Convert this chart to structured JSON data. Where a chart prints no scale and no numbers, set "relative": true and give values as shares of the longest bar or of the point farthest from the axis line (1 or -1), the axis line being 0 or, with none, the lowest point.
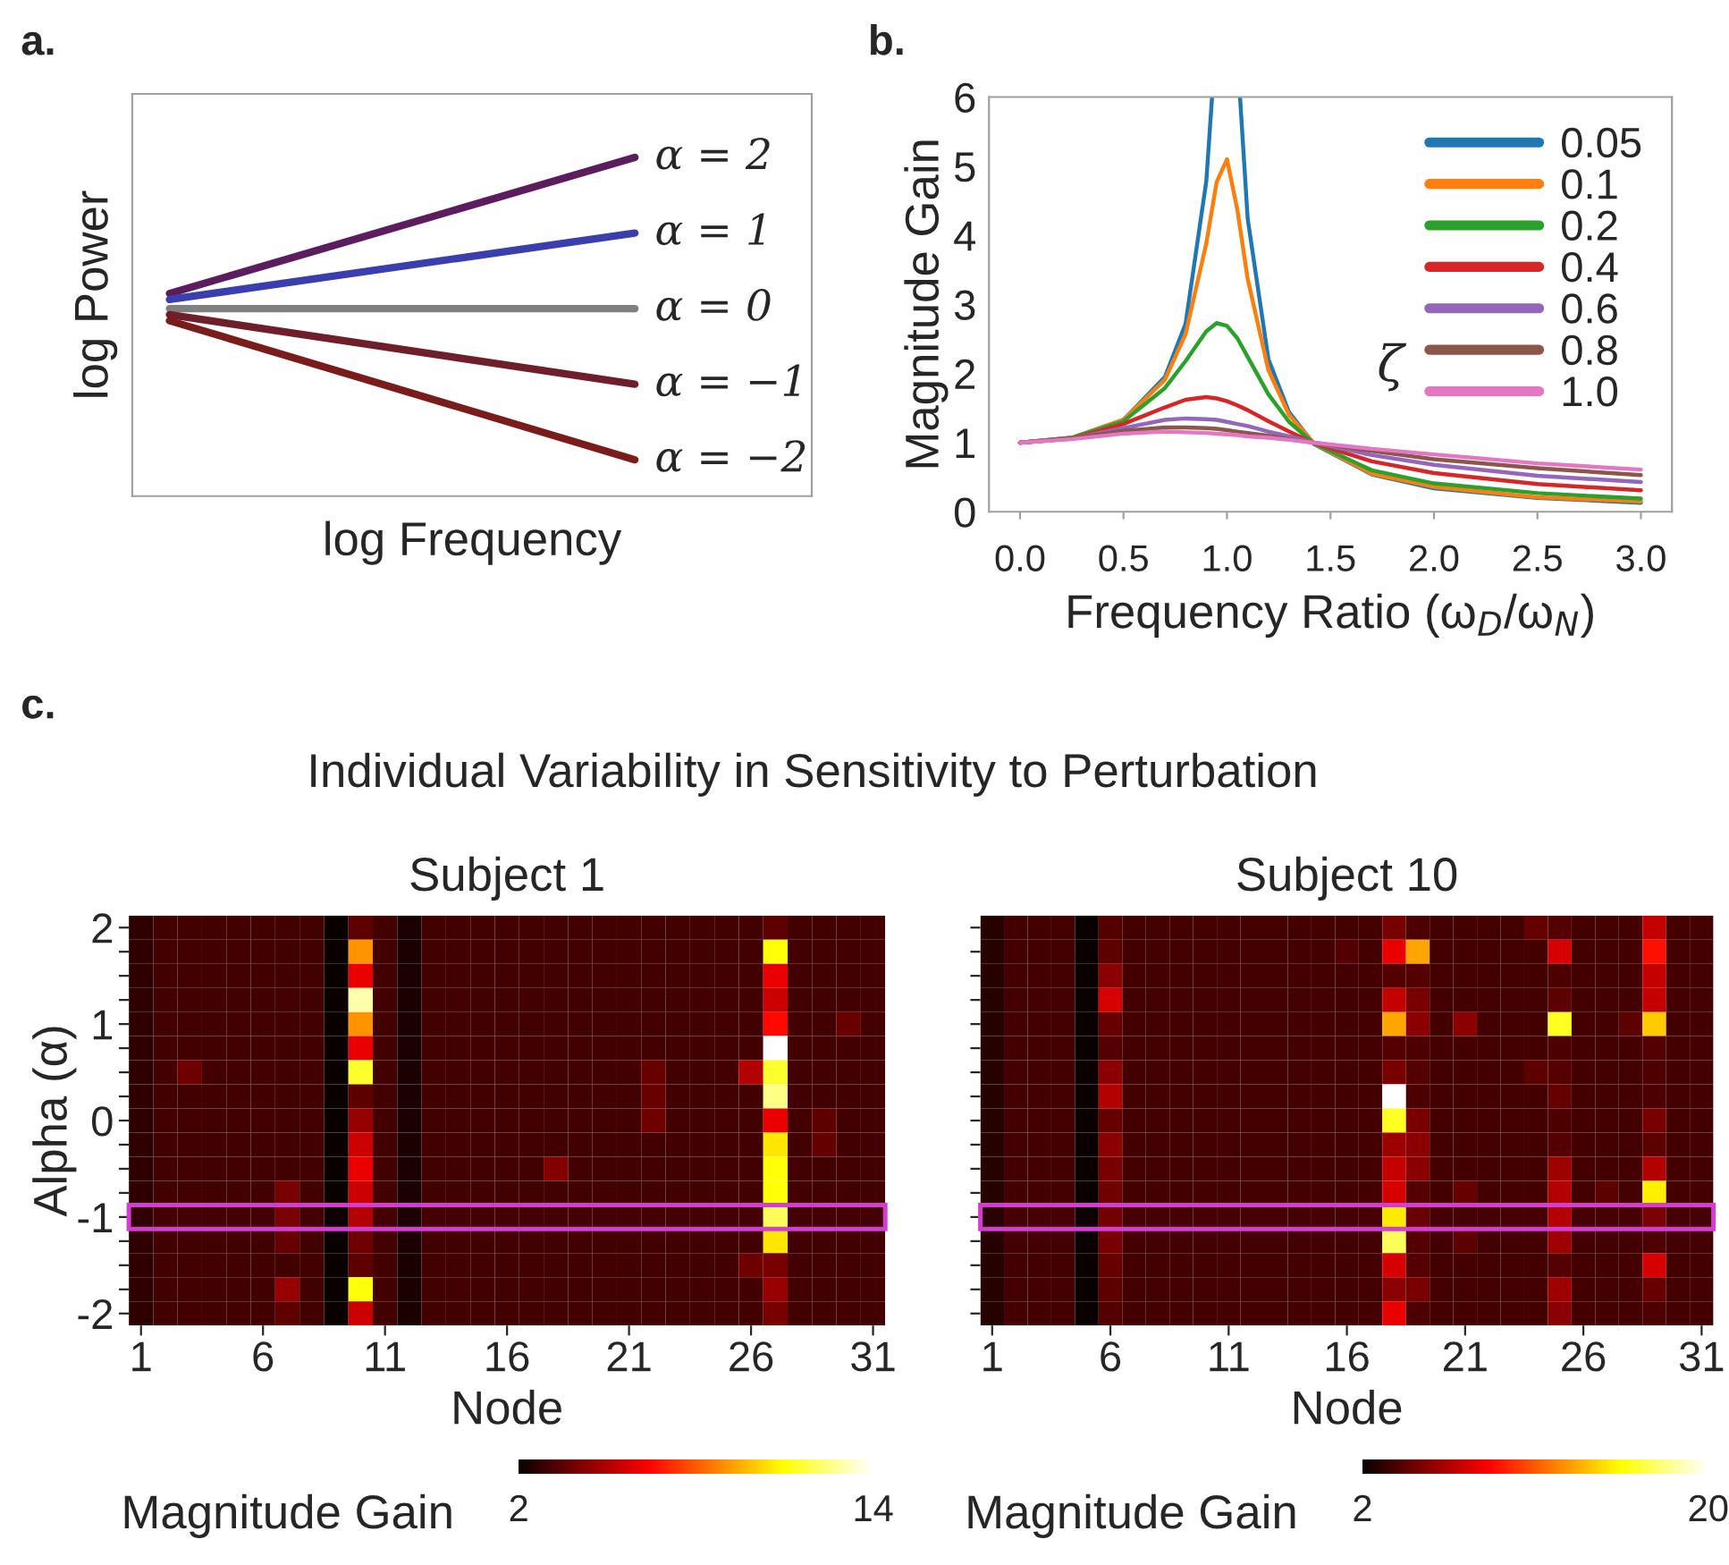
{
  "chart_data": [
    {
      "type": "line",
      "relative": true,
      "categories": [
        null,
        null
      ],
      "xlabel": "log Frequency",
      "ylabel": "log Power",
      "tick_labels": false,
      "annotations": [
        "a."
      ],
      "series": [
        {
          "name": "α = 2",
          "color": "#5b1d5e",
          "values": [
            0.55,
            1
          ]
        },
        {
          "name": "α = 1",
          "color": "#3b3fae",
          "values": [
            0.53,
            0.75
          ]
        },
        {
          "name": "α = 0",
          "color": "#808080",
          "values": [
            0.5,
            0.5
          ]
        },
        {
          "name": "α = −1",
          "color": "#6e1f2a",
          "values": [
            0.48,
            0.25
          ]
        },
        {
          "name": "α = −2",
          "color": "#7a1c1c",
          "values": [
            0.46,
            0
          ]
        }
      ]
    },
    {
      "type": "line",
      "xlabel": "Frequency Ratio (ω$_{D}$/ω$_{N}$)",
      "ylabel": "Magnitude Gain",
      "legend": "top right",
      "legend_title": "ζ",
      "annotations": [
        "b."
      ],
      "x": [
        0,
        0.25,
        0.5,
        0.7,
        0.8,
        0.9,
        0.95,
        1.0,
        1.05,
        1.1,
        1.2,
        1.3,
        1.42,
        1.7,
        2.0,
        2.5,
        3.0
      ],
      "xlim": [
        -0.15,
        3.15
      ],
      "ylim": [
        0,
        6
      ],
      "xticks": [
        {
          "value": 0,
          "label": "0.0"
        },
        {
          "value": 0.5,
          "label": "0.5"
        },
        {
          "value": 1,
          "label": "1.0"
        },
        {
          "value": 1.5,
          "label": "1.5"
        },
        {
          "value": 2,
          "label": "2.0"
        },
        {
          "value": 2.5,
          "label": "2.5"
        },
        {
          "value": 3,
          "label": "3.0"
        }
      ],
      "yticks": [
        0,
        1,
        2,
        3,
        4,
        5,
        6
      ],
      "series": [
        {
          "name": "0.05",
          "color": "#1f77b4",
          "x": [
            0,
            0.25,
            0.5,
            0.7,
            0.8,
            0.9,
            0.928,
            1.0,
            1.063,
            1.1,
            1.2,
            1.3,
            1.42,
            1.7,
            2.0,
            2.5,
            3.0
          ],
          "values": [
            1,
            1.07,
            1.33,
            1.95,
            2.72,
            4.78,
            6,
            null,
            6,
            4.24,
            2.21,
            1.44,
            0.98,
            0.54,
            0.34,
            0.2,
            0.13
          ]
        },
        {
          "name": "0.1",
          "color": "#ff7f0e",
          "values": [
            1,
            1.07,
            1.33,
            1.91,
            2.57,
            3.88,
            4.77,
            5.1,
            4.37,
            3.37,
            2.05,
            1.4,
            0.99,
            0.55,
            0.36,
            0.21,
            0.15
          ]
        },
        {
          "name": "0.2",
          "color": "#2ca02c",
          "values": [
            1,
            1.07,
            1.31,
            1.79,
            2.18,
            2.61,
            2.73,
            2.69,
            2.51,
            2.24,
            1.7,
            1.3,
            0.99,
            0.6,
            0.41,
            0.27,
            0.19
          ]
        },
        {
          "name": "0.4",
          "color": "#d62728",
          "values": [
            1,
            1.06,
            1.27,
            1.51,
            1.62,
            1.66,
            1.64,
            1.6,
            1.54,
            1.47,
            1.31,
            1.16,
            0.99,
            0.73,
            0.56,
            0.4,
            0.31
          ]
        },
        {
          "name": "0.6",
          "color": "#9467bd",
          "values": [
            1,
            1.06,
            1.21,
            1.33,
            1.35,
            1.34,
            1.33,
            1.3,
            1.27,
            1.24,
            1.16,
            1.09,
            1.0,
            0.82,
            0.68,
            0.52,
            0.43
          ]
        },
        {
          "name": "0.8",
          "color": "#8c564b",
          "values": [
            1,
            1.06,
            1.17,
            1.22,
            1.22,
            1.21,
            1.2,
            1.18,
            1.16,
            1.14,
            1.1,
            1.05,
            1.0,
            0.88,
            0.76,
            0.63,
            0.53
          ]
        },
        {
          "name": "1.0",
          "color": "#e377c2",
          "values": [
            1,
            1.05,
            1.13,
            1.16,
            1.15,
            1.14,
            1.13,
            1.12,
            1.11,
            1.09,
            1.07,
            1.04,
            1.0,
            0.91,
            0.83,
            0.7,
            0.61
          ]
        }
      ]
    },
    {
      "type": "heatmap",
      "title": "Subject 1",
      "xlabel": "Node",
      "ylabel": "Alpha (α)",
      "clabel": "Magnitude Gain",
      "clim": [
        2,
        14
      ],
      "cticks": [
        2,
        14
      ],
      "annotations": [
        "c.",
        "Individual Variability in Sensitivity to Perturbation"
      ],
      "bands": [
        {
          "axis": "y",
          "from": "-1",
          "to": "-1",
          "color": "#d23fd0"
        }
      ],
      "categories": [
        "1",
        null,
        null,
        null,
        null,
        "6",
        null,
        null,
        null,
        null,
        "11",
        null,
        null,
        null,
        null,
        "16",
        null,
        null,
        null,
        null,
        "21",
        null,
        null,
        null,
        null,
        "26",
        null,
        null,
        null,
        null,
        "31"
      ],
      "y_categories": [
        "2",
        null,
        null,
        null,
        "1",
        null,
        null,
        null,
        "0",
        null,
        null,
        null,
        "-1",
        null,
        null,
        null,
        "-2"
      ],
      "cells": [
        [
          2.7,
          3,
          3,
          3,
          3,
          3,
          3,
          3,
          2,
          3.5,
          3,
          2.3,
          3,
          3,
          3,
          3,
          3,
          3,
          3,
          3,
          3,
          3,
          3,
          3,
          3,
          3,
          3.5,
          3,
          3,
          3,
          3
        ],
        [
          2.7,
          3,
          3,
          3,
          3,
          3,
          3,
          3,
          2,
          9,
          3,
          2.3,
          3,
          3,
          3,
          3,
          3,
          3,
          3,
          3,
          3,
          3,
          3,
          3,
          3,
          3,
          11,
          3,
          3,
          3,
          3
        ],
        [
          2.7,
          3,
          3,
          3,
          3,
          3,
          3,
          3,
          2,
          6,
          3,
          2.3,
          3,
          3,
          3,
          3,
          3,
          3,
          3,
          3,
          3,
          3,
          3,
          3,
          3,
          3,
          6,
          3,
          3,
          3,
          3
        ],
        [
          2.7,
          3,
          3,
          3,
          3,
          3,
          3,
          3,
          2,
          13,
          3,
          2.3,
          3,
          3,
          3,
          3,
          3,
          3,
          3,
          3,
          3,
          3,
          3,
          3,
          3,
          3,
          5.5,
          3,
          3,
          3,
          3
        ],
        [
          2.7,
          3,
          3,
          3,
          3,
          3,
          3,
          3,
          2,
          9,
          3,
          2.3,
          3,
          3,
          3,
          3,
          3,
          3,
          3,
          3,
          3,
          3,
          3,
          3,
          3,
          3,
          6.5,
          3,
          3,
          3.7,
          3
        ],
        [
          2.7,
          3,
          3,
          3,
          3,
          3,
          3,
          3,
          2,
          6,
          3,
          2.3,
          3,
          3,
          3,
          3,
          3,
          3,
          3,
          3,
          3,
          3,
          3,
          3,
          3,
          3,
          14,
          3,
          3,
          3,
          3
        ],
        [
          2.7,
          3,
          3.8,
          3,
          3,
          3,
          3,
          3,
          2,
          11.5,
          3,
          2.3,
          3,
          3,
          3,
          3,
          3,
          3,
          3,
          3,
          3,
          3.7,
          3,
          3,
          3,
          5,
          11.5,
          3,
          3,
          3,
          3
        ],
        [
          2.7,
          3,
          3,
          3,
          3,
          3,
          3,
          3,
          2,
          3.5,
          3,
          2.3,
          3,
          3,
          3,
          3,
          3,
          3,
          3,
          3,
          3,
          3.7,
          3,
          3,
          3,
          3,
          12.5,
          3,
          3,
          3,
          3
        ],
        [
          2.7,
          3,
          3,
          3,
          3,
          3,
          3,
          3,
          2,
          4.5,
          3,
          2.3,
          3,
          3,
          3,
          3,
          3,
          3,
          3,
          3,
          3,
          3.8,
          3,
          3,
          3,
          3,
          6,
          3,
          3.5,
          3,
          3
        ],
        [
          2.7,
          3,
          3,
          3,
          3,
          3,
          3,
          3,
          2,
          5.5,
          3,
          2.3,
          3,
          3,
          3,
          3,
          3,
          3,
          3,
          3,
          3,
          3,
          3,
          3,
          3,
          3,
          10.5,
          3,
          3.6,
          3,
          3
        ],
        [
          2.7,
          3,
          3,
          3,
          3,
          3,
          3,
          3,
          2,
          6,
          3,
          2.3,
          3,
          3,
          3,
          3,
          3,
          4.2,
          3,
          3,
          3,
          3,
          3,
          3,
          3,
          3,
          11,
          3,
          3,
          3,
          3
        ],
        [
          2.7,
          3,
          3,
          3,
          3,
          3,
          4,
          3,
          2,
          5.5,
          3,
          2.3,
          3,
          3,
          3,
          3,
          3,
          3,
          3,
          3,
          3,
          3,
          3,
          3,
          3,
          3,
          11,
          3,
          3,
          3,
          3
        ],
        [
          2.7,
          3,
          3,
          3,
          3,
          3,
          4,
          3,
          2,
          5,
          3,
          2.3,
          3,
          3,
          3,
          3,
          3,
          3,
          3,
          3,
          3,
          3,
          3,
          3,
          3,
          3,
          12,
          3,
          3,
          3,
          3
        ],
        [
          2.7,
          3,
          3,
          3,
          3,
          3,
          3.6,
          3,
          2,
          3.8,
          3,
          2.3,
          3,
          3,
          3,
          3,
          3,
          3,
          3,
          3,
          3,
          3,
          3,
          3,
          3,
          3,
          10.5,
          3,
          3,
          3,
          3
        ],
        [
          2.7,
          3,
          3,
          3,
          3,
          3,
          3,
          3,
          2,
          3.5,
          3,
          2.3,
          3,
          3,
          3,
          3,
          3,
          3,
          3,
          3,
          3,
          3,
          3,
          3,
          3,
          3.8,
          4,
          3,
          3,
          3,
          3
        ],
        [
          2.7,
          3,
          3,
          3,
          3,
          3,
          4.5,
          3,
          2,
          11,
          3,
          2.3,
          3,
          3,
          3,
          3,
          3,
          3,
          3,
          3,
          3,
          3,
          3,
          3,
          3,
          3,
          4.5,
          3,
          3,
          3,
          3
        ],
        [
          2.7,
          3,
          3,
          3,
          3,
          3,
          3.5,
          3,
          2,
          5.5,
          3,
          2.3,
          3,
          3,
          3,
          3,
          3,
          3,
          3,
          3,
          3,
          3,
          3,
          3,
          3,
          3,
          4,
          3,
          3,
          3,
          3
        ]
      ]
    },
    {
      "type": "heatmap",
      "title": "Subject 10",
      "xlabel": "Node",
      "clabel": "Magnitude Gain",
      "clim": [
        2,
        20
      ],
      "cticks": [
        2,
        20
      ],
      "tick_labels": "x",
      "bands": [
        {
          "axis": "y",
          "from": "-1",
          "to": "-1",
          "color": "#d23fd0"
        }
      ],
      "categories": [
        "1",
        null,
        null,
        null,
        null,
        "6",
        null,
        null,
        null,
        null,
        "11",
        null,
        null,
        null,
        null,
        "16",
        null,
        null,
        null,
        null,
        "21",
        null,
        null,
        null,
        null,
        "26",
        null,
        null,
        null,
        null,
        "31"
      ],
      "y_categories": [
        "2",
        null,
        null,
        null,
        "1",
        null,
        null,
        null,
        "0",
        null,
        null,
        null,
        "-1",
        null,
        null,
        null,
        "-2"
      ],
      "cells": [
        [
          2.8,
          3.6,
          3.6,
          3.6,
          2,
          4,
          3.6,
          3.6,
          3.6,
          3.6,
          3.6,
          3.6,
          3.6,
          3.6,
          3.6,
          3.6,
          3.6,
          5,
          3.8,
          3.6,
          3.6,
          3.6,
          3.6,
          4.5,
          4,
          3.6,
          3.6,
          3.6,
          7,
          3.6,
          3.6
        ],
        [
          2.8,
          3.6,
          3.6,
          3.6,
          2,
          4.2,
          3.6,
          3.6,
          3.6,
          3.6,
          3.6,
          3.6,
          3.6,
          3.6,
          3.6,
          4,
          3.6,
          8,
          13,
          3.6,
          3.6,
          3.6,
          3.6,
          3.6,
          7.5,
          3.6,
          3.6,
          3.6,
          9,
          3.6,
          3.6
        ],
        [
          2.8,
          3.6,
          3.6,
          3.6,
          2,
          5.5,
          3.6,
          3.6,
          3.6,
          3.6,
          3.6,
          3.6,
          3.6,
          3.6,
          3.6,
          3.6,
          3.6,
          4,
          4,
          3.6,
          3.6,
          3.6,
          3.6,
          3.6,
          3.8,
          3.6,
          3.6,
          3.6,
          7,
          3.6,
          3.6
        ],
        [
          2.8,
          3.6,
          3.6,
          3.6,
          2,
          7.5,
          3.6,
          3.6,
          3.6,
          3.6,
          3.6,
          3.6,
          3.6,
          3.6,
          3.6,
          3.6,
          3.6,
          7,
          5,
          3.6,
          3.6,
          3.6,
          3.6,
          3.6,
          4.2,
          3.6,
          3.6,
          3.6,
          7,
          3.6,
          3.6
        ],
        [
          2.8,
          3.6,
          3.6,
          3.6,
          2,
          4.5,
          3.6,
          3.6,
          3.6,
          3.6,
          3.6,
          3.6,
          3.6,
          3.6,
          3.6,
          3.6,
          3.6,
          13,
          5.5,
          3.6,
          5.5,
          3.6,
          3.6,
          3.6,
          16,
          3.6,
          3.6,
          4.2,
          14,
          3.6,
          3.6
        ],
        [
          2.8,
          3.6,
          3.6,
          3.6,
          2,
          4,
          3.6,
          3.6,
          3.6,
          3.6,
          3.6,
          3.6,
          3.6,
          3.6,
          3.6,
          3.6,
          3.6,
          4,
          3.8,
          3.6,
          3.6,
          3.6,
          3.6,
          3.6,
          3.8,
          3.6,
          3.6,
          3.6,
          4,
          3.6,
          3.6
        ],
        [
          2.8,
          3.6,
          3.6,
          3.6,
          2,
          5.5,
          3.6,
          3.6,
          3.6,
          3.6,
          3.6,
          3.6,
          3.6,
          3.6,
          3.6,
          3.6,
          3.6,
          5,
          4,
          3.6,
          3.6,
          3.6,
          3.6,
          4.2,
          4,
          3.6,
          3.6,
          3.6,
          3.8,
          3.6,
          3.6
        ],
        [
          2.8,
          3.6,
          3.6,
          3.6,
          2,
          6.5,
          3.6,
          3.6,
          3.6,
          3.6,
          3.6,
          3.6,
          3.6,
          3.6,
          3.6,
          3.6,
          3.6,
          20,
          3.8,
          3.6,
          3.6,
          3.6,
          3.6,
          3.6,
          4.5,
          3.6,
          3.6,
          3.6,
          3.8,
          3.6,
          3.6
        ],
        [
          2.8,
          3.6,
          3.6,
          3.6,
          2,
          4.5,
          3.6,
          3.6,
          3.6,
          3.6,
          3.6,
          3.6,
          3.6,
          3.6,
          3.6,
          3.6,
          3.6,
          16,
          5,
          3.6,
          3.6,
          3.6,
          3.6,
          3.6,
          3.8,
          3.6,
          3.6,
          3.6,
          5,
          3.6,
          3.6
        ],
        [
          2.8,
          3.6,
          3.6,
          3.6,
          2,
          5.5,
          3.6,
          3.6,
          3.6,
          3.6,
          3.6,
          3.6,
          3.6,
          3.6,
          3.6,
          3.6,
          3.6,
          6,
          5.5,
          3.6,
          3.6,
          3.6,
          3.6,
          3.6,
          4,
          3.6,
          3.6,
          3.6,
          4.2,
          3.6,
          3.6
        ],
        [
          2.8,
          3.6,
          3.6,
          3.6,
          2,
          5,
          3.6,
          3.6,
          3.6,
          3.6,
          3.6,
          3.6,
          3.6,
          3.6,
          3.6,
          3.6,
          3.6,
          7,
          5.5,
          3.6,
          3.6,
          3.6,
          3.6,
          3.6,
          6,
          3.6,
          3.6,
          3.6,
          6.5,
          3.6,
          3.6
        ],
        [
          2.8,
          3.6,
          3.6,
          3.6,
          2,
          4.8,
          3.6,
          3.6,
          3.6,
          3.6,
          3.6,
          3.6,
          3.6,
          3.6,
          3.6,
          3.6,
          3.6,
          7.5,
          4,
          3.6,
          4.5,
          3.6,
          3.6,
          3.6,
          6.5,
          3.6,
          4.2,
          3.6,
          15,
          3.6,
          3.6
        ],
        [
          2.8,
          3.6,
          3.6,
          3.6,
          2,
          4.8,
          3.6,
          3.6,
          3.6,
          3.6,
          3.6,
          3.6,
          3.6,
          3.6,
          3.6,
          3.6,
          3.6,
          15,
          4.5,
          3.6,
          3.6,
          3.6,
          3.6,
          3.6,
          6.5,
          3.6,
          3.6,
          3.6,
          5,
          3.6,
          3.6
        ],
        [
          2.8,
          3.6,
          3.6,
          3.6,
          2,
          5,
          3.6,
          3.6,
          3.6,
          3.6,
          3.6,
          3.6,
          3.6,
          3.6,
          3.6,
          3.6,
          3.6,
          17,
          4,
          3.6,
          4.2,
          3.6,
          3.6,
          3.6,
          6,
          3.6,
          3.6,
          3.6,
          3.8,
          3.6,
          3.6
        ],
        [
          2.8,
          3.6,
          3.6,
          3.6,
          2,
          4.5,
          3.6,
          3.6,
          3.6,
          3.6,
          3.6,
          3.6,
          3.6,
          3.6,
          3.6,
          3.6,
          3.6,
          7.5,
          4,
          3.6,
          3.6,
          3.6,
          3.6,
          3.6,
          4,
          3.6,
          3.6,
          3.6,
          7.5,
          3.6,
          3.6
        ],
        [
          2.8,
          3.6,
          3.6,
          3.6,
          2,
          4.2,
          3.6,
          3.6,
          3.6,
          3.6,
          3.6,
          3.6,
          3.6,
          3.6,
          3.6,
          3.6,
          3.6,
          5.5,
          5,
          3.6,
          3.6,
          3.6,
          3.6,
          3.6,
          6,
          3.6,
          3.6,
          3.6,
          4.5,
          3.6,
          3.6
        ],
        [
          2.8,
          3.6,
          3.6,
          3.6,
          2,
          4,
          3.6,
          3.6,
          3.6,
          3.6,
          3.6,
          3.6,
          3.6,
          3.6,
          3.6,
          3.6,
          3.6,
          8,
          3.8,
          3.6,
          3.6,
          3.6,
          3.6,
          3.6,
          5.5,
          3.6,
          3.6,
          3.6,
          3.8,
          3.6,
          3.6
        ]
      ]
    }
  ]
}
